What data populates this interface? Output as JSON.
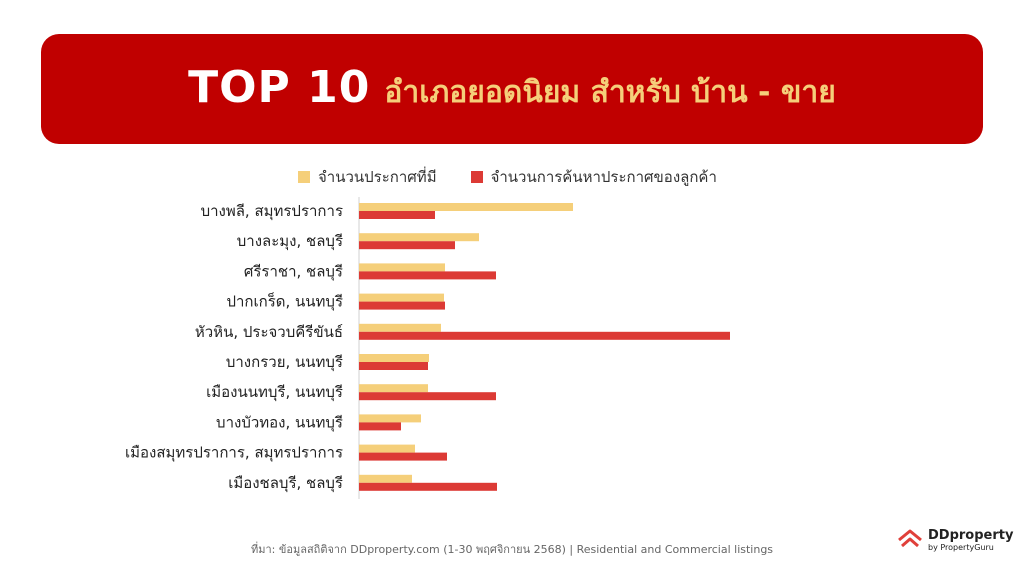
{
  "header": {
    "title_main": "TOP 10",
    "title_sub": "อำเภอยอดนิยม สำหรับ บ้าน - ขาย"
  },
  "colors": {
    "banner": "#c00000",
    "title_sub": "#f5cf7a",
    "listings": "#f5cf7a",
    "searches": "#dc3a35"
  },
  "chart_data": {
    "type": "bar",
    "orientation": "horizontal",
    "title": "",
    "xlabel": "",
    "ylabel": "",
    "categories": [
      "บางพลี, สมุทรปราการ",
      "บางละมุง, ชลบุรี",
      "ศรีราชา, ชลบุรี",
      "ปากเกร็ด, นนทบุรี",
      "หัวหิน, ประจวบคีรีขันธ์",
      "บางกรวย, นนทบุรี",
      "เมืองนนทบุรี, นนทบุรี",
      "บางบัวทอง, นนทบุรี",
      "เมืองสมุทรปราการ, สมุทรปราการ",
      "เมืองชลบุรี, ชลบุรี"
    ],
    "series": [
      {
        "name": "จำนวนประกาศที่มี",
        "color": "#f5cf7a",
        "values": [
          214,
          120,
          86,
          85,
          82,
          70,
          69,
          62,
          56,
          53
        ]
      },
      {
        "name": "จำนวนการค้นหาประกาศของลูกค้า",
        "color": "#dc3a35",
        "values": [
          76,
          96,
          137,
          86,
          371,
          69,
          137,
          42,
          88,
          138
        ]
      }
    ],
    "xlim": [
      0,
      400
    ],
    "grid": false,
    "legend_position": "top"
  },
  "footer": {
    "source": "ที่มา: ข้อมูลสถิติจาก DDproperty.com (1-30 พฤศจิกายน 2568) | Residential and Commercial listings"
  },
  "logo": {
    "name": "DDproperty",
    "tagline": "by PropertyGuru",
    "icon": "house-roof-icon"
  }
}
